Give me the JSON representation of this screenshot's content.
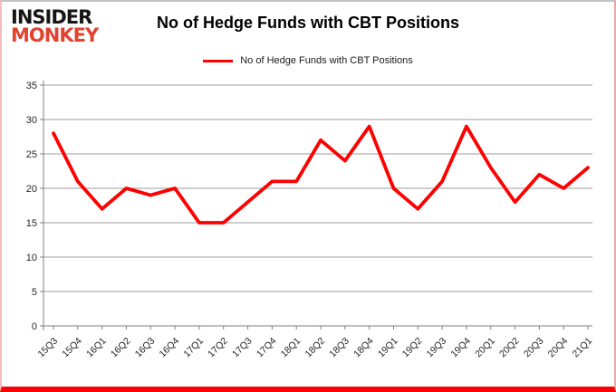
{
  "logo": {
    "line1": "INSIDER",
    "line2": "MONKEY"
  },
  "header": {
    "title": "No of Hedge Funds with CBT Positions"
  },
  "legend": {
    "label": "No of Hedge Funds with CBT Positions"
  },
  "colors": {
    "series_red": "#ff0000",
    "logo_red": "#e0432f",
    "grid": "#9d9d9d",
    "axis": "#7f7f7f",
    "tick_text": "#262626",
    "bottom_border_red": "#fb0207"
  },
  "chart_data": {
    "type": "line",
    "title": "No of Hedge Funds with CBT Positions",
    "categories": [
      "15Q3",
      "15Q4",
      "16Q1",
      "16Q2",
      "16Q3",
      "16Q4",
      "17Q1",
      "17Q2",
      "17Q3",
      "17Q4",
      "18Q1",
      "18Q2",
      "18Q3",
      "18Q4",
      "19Q1",
      "19Q2",
      "19Q3",
      "19Q4",
      "20Q1",
      "20Q2",
      "20Q3",
      "20Q4",
      "21Q1"
    ],
    "series": [
      {
        "name": "No of Hedge Funds with CBT Positions",
        "color": "#ff0000",
        "values": [
          28,
          21,
          17,
          20,
          19,
          20,
          15,
          15,
          18,
          21,
          21,
          27,
          24,
          29,
          20,
          17,
          21,
          29,
          23,
          18,
          22,
          20,
          23
        ]
      }
    ],
    "xlabel": "",
    "ylabel": "",
    "ylim": [
      0,
      35
    ],
    "yticks": [
      0,
      5,
      10,
      15,
      20,
      25,
      30,
      35
    ],
    "grid": true,
    "legend_position": "top-center"
  }
}
